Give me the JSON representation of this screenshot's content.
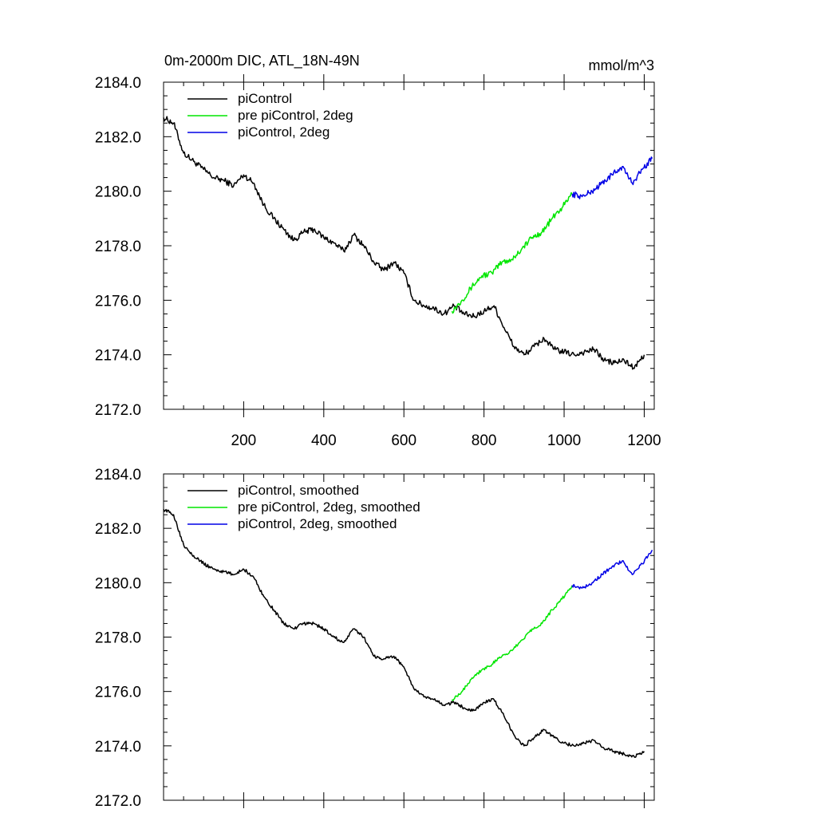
{
  "chart_data": [
    {
      "type": "line",
      "title": "0m-2000m DIC, ATL_18N-49N",
      "units": "mmol/m^3",
      "xlim": [
        0,
        1225
      ],
      "ylim": [
        2172.0,
        2184.0
      ],
      "xticks": [
        200,
        400,
        600,
        800,
        1000,
        1200
      ],
      "xtick_labels": [
        "200",
        "400",
        "600",
        "800",
        "1000",
        "1200"
      ],
      "yticks": [
        2172,
        2174,
        2176,
        2178,
        2180,
        2182,
        2184
      ],
      "ytick_labels": [
        "2172.0",
        "2174.0",
        "2176.0",
        "2178.0",
        "2180.0",
        "2182.0",
        "2184.0"
      ],
      "legend_position": "top-left",
      "series": [
        {
          "name": "piControl",
          "color": "#000000",
          "x": [
            0,
            25,
            50,
            75,
            100,
            125,
            150,
            175,
            200,
            225,
            250,
            275,
            300,
            325,
            350,
            375,
            400,
            425,
            450,
            475,
            500,
            525,
            550,
            575,
            600,
            625,
            650,
            675,
            700,
            725,
            750,
            775,
            800,
            825,
            850,
            875,
            900,
            925,
            950,
            975,
            1000,
            1025,
            1050,
            1075,
            1100,
            1125,
            1150,
            1175,
            1200
          ],
          "values": [
            2182.7,
            2182.5,
            2181.4,
            2181.1,
            2180.8,
            2180.5,
            2180.4,
            2180.2,
            2180.6,
            2180.3,
            2179.5,
            2179.0,
            2178.6,
            2178.2,
            2178.5,
            2178.6,
            2178.3,
            2178.1,
            2177.8,
            2178.4,
            2178.0,
            2177.4,
            2177.1,
            2177.4,
            2177.0,
            2176.0,
            2175.8,
            2175.7,
            2175.5,
            2175.8,
            2175.5,
            2175.4,
            2175.6,
            2175.8,
            2175.0,
            2174.3,
            2174.0,
            2174.3,
            2174.6,
            2174.2,
            2174.1,
            2174.0,
            2174.1,
            2174.2,
            2173.8,
            2173.7,
            2173.8,
            2173.5,
            2174.0
          ]
        },
        {
          "name": "pre piControl, 2deg",
          "color": "#00e600",
          "x": [
            720,
            745,
            770,
            795,
            820,
            845,
            870,
            895,
            920,
            945,
            970,
            995,
            1020
          ],
          "values": [
            2175.6,
            2176.0,
            2176.5,
            2176.9,
            2177.0,
            2177.4,
            2177.5,
            2177.9,
            2178.3,
            2178.5,
            2179.0,
            2179.4,
            2179.9
          ]
        },
        {
          "name": "piControl, 2deg",
          "color": "#0000e6",
          "x": [
            1020,
            1045,
            1070,
            1095,
            1120,
            1145,
            1170,
            1195,
            1220
          ],
          "values": [
            2179.9,
            2179.8,
            2180.0,
            2180.3,
            2180.6,
            2180.9,
            2180.3,
            2180.8,
            2181.2
          ]
        }
      ]
    },
    {
      "type": "line",
      "xlim": [
        0,
        1225
      ],
      "ylim": [
        2172.0,
        2184.0
      ],
      "yticks": [
        2172,
        2174,
        2176,
        2178,
        2180,
        2182,
        2184
      ],
      "ytick_labels": [
        "2172.0",
        "2174.0",
        "2176.0",
        "2178.0",
        "2180.0",
        "2182.0",
        "2184.0"
      ],
      "legend_position": "top-left",
      "series": [
        {
          "name": "piControl, smoothed",
          "color": "#000000",
          "x": [
            0,
            25,
            50,
            75,
            100,
            125,
            150,
            175,
            200,
            225,
            250,
            275,
            300,
            325,
            350,
            375,
            400,
            425,
            450,
            475,
            500,
            525,
            550,
            575,
            600,
            625,
            650,
            675,
            700,
            725,
            750,
            775,
            800,
            825,
            850,
            875,
            900,
            925,
            950,
            975,
            1000,
            1025,
            1050,
            1075,
            1100,
            1125,
            1150,
            1175,
            1200
          ],
          "values": [
            2182.7,
            2182.5,
            2181.4,
            2181.0,
            2180.7,
            2180.5,
            2180.4,
            2180.3,
            2180.5,
            2180.2,
            2179.5,
            2179.0,
            2178.5,
            2178.3,
            2178.5,
            2178.5,
            2178.3,
            2178.0,
            2177.8,
            2178.3,
            2178.0,
            2177.3,
            2177.2,
            2177.3,
            2176.9,
            2176.1,
            2175.8,
            2175.7,
            2175.5,
            2175.6,
            2175.4,
            2175.3,
            2175.6,
            2175.7,
            2175.1,
            2174.4,
            2174.0,
            2174.3,
            2174.6,
            2174.3,
            2174.1,
            2174.0,
            2174.1,
            2174.2,
            2173.9,
            2173.8,
            2173.7,
            2173.6,
            2173.8
          ]
        },
        {
          "name": "pre piControl, 2deg, smoothed",
          "color": "#00e600",
          "x": [
            720,
            745,
            770,
            795,
            820,
            845,
            870,
            895,
            920,
            945,
            970,
            995,
            1020
          ],
          "values": [
            2175.7,
            2176.0,
            2176.5,
            2176.8,
            2177.0,
            2177.3,
            2177.5,
            2177.9,
            2178.3,
            2178.5,
            2179.0,
            2179.4,
            2179.9
          ]
        },
        {
          "name": "piControl, 2deg, smoothed",
          "color": "#0000e6",
          "x": [
            1020,
            1045,
            1070,
            1095,
            1120,
            1145,
            1170,
            1195,
            1220
          ],
          "values": [
            2179.9,
            2179.8,
            2180.0,
            2180.3,
            2180.6,
            2180.8,
            2180.3,
            2180.7,
            2181.2
          ]
        }
      ]
    }
  ]
}
